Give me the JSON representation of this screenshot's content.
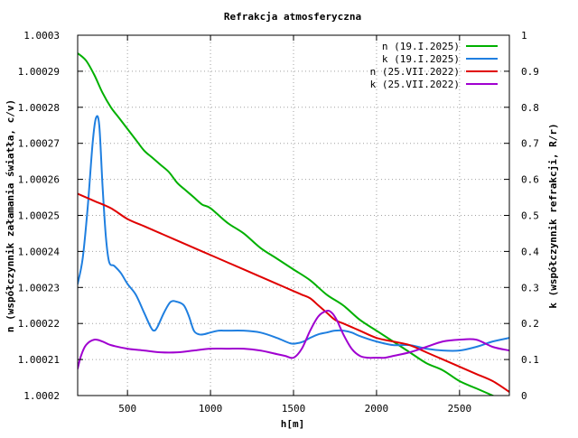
{
  "chart_data": {
    "type": "line",
    "title": "Refrakcja atmosferyczna",
    "xlabel": "h[m]",
    "ylabel_left": "n (współczynnik załamania światła, c/v)",
    "ylabel_right": "k (współczynnik refrakcji, R/r)",
    "xlim": [
      200,
      2800
    ],
    "ylim_left": [
      1.0002,
      1.0003
    ],
    "ylim_right": [
      0,
      1
    ],
    "x_ticks": [
      500,
      1000,
      1500,
      2000,
      2500
    ],
    "x_tick_labels": [
      "500",
      "1000",
      "1500",
      "2000",
      "2500"
    ],
    "y_left_ticks": [
      1.0002,
      1.00021,
      1.00022,
      1.00023,
      1.00024,
      1.00025,
      1.00026,
      1.00027,
      1.00028,
      1.00029,
      1.0003
    ],
    "y_left_tick_labels": [
      "1.0002",
      "1.00021",
      "1.00022",
      "1.00023",
      "1.00024",
      "1.00025",
      "1.00026",
      "1.00027",
      "1.00028",
      "1.00029",
      "1.0003"
    ],
    "y_right_ticks": [
      0,
      0.1,
      0.2,
      0.3,
      0.4,
      0.5,
      0.6,
      0.7,
      0.8,
      0.9,
      1
    ],
    "y_right_tick_labels": [
      "0",
      "0.1",
      "0.2",
      "0.3",
      "0.4",
      "0.5",
      "0.6",
      "0.7",
      "0.8",
      "0.9",
      "1"
    ],
    "grid": true,
    "legend_position": "top-right",
    "series": [
      {
        "name": "n (19.I.2025)",
        "axis": "left",
        "color": "#00b000",
        "x": [
          200,
          250,
          300,
          350,
          400,
          450,
          500,
          550,
          600,
          650,
          700,
          750,
          800,
          850,
          900,
          950,
          1000,
          1100,
          1200,
          1300,
          1400,
          1500,
          1600,
          1700,
          1800,
          1900,
          2000,
          2100,
          2200,
          2300,
          2400,
          2500,
          2600,
          2700,
          2800
        ],
        "y": [
          1.000295,
          1.000293,
          1.000289,
          1.000284,
          1.00028,
          1.000277,
          1.000274,
          1.000271,
          1.000268,
          1.000266,
          1.000264,
          1.000262,
          1.000259,
          1.000257,
          1.000255,
          1.000253,
          1.000252,
          1.000248,
          1.000245,
          1.000241,
          1.000238,
          1.000235,
          1.000232,
          1.000228,
          1.000225,
          1.000221,
          1.000218,
          1.000215,
          1.000212,
          1.000209,
          1.000207,
          1.000204,
          1.000202,
          1.0002,
          1.000198
        ]
      },
      {
        "name": "k (19.I.2025)",
        "axis": "right",
        "color": "#1f7fe0",
        "x": [
          200,
          230,
          260,
          290,
          310,
          330,
          350,
          370,
          390,
          420,
          460,
          500,
          550,
          600,
          640,
          660,
          680,
          720,
          760,
          800,
          840,
          870,
          900,
          930,
          960,
          1000,
          1050,
          1100,
          1200,
          1300,
          1400,
          1480,
          1520,
          1560,
          1600,
          1650,
          1700,
          1750,
          1800,
          1850,
          1900,
          2000,
          2100,
          2200,
          2300,
          2400,
          2500,
          2600,
          2700,
          2800
        ],
        "y": [
          0.31,
          0.38,
          0.52,
          0.7,
          0.77,
          0.75,
          0.58,
          0.44,
          0.37,
          0.36,
          0.34,
          0.31,
          0.28,
          0.23,
          0.19,
          0.18,
          0.19,
          0.23,
          0.26,
          0.26,
          0.25,
          0.22,
          0.18,
          0.17,
          0.17,
          0.175,
          0.18,
          0.18,
          0.18,
          0.175,
          0.16,
          0.145,
          0.145,
          0.15,
          0.16,
          0.17,
          0.175,
          0.18,
          0.18,
          0.175,
          0.165,
          0.15,
          0.14,
          0.14,
          0.13,
          0.125,
          0.125,
          0.135,
          0.15,
          0.16
        ]
      },
      {
        "name": "n (25.VII.2022)",
        "axis": "left",
        "color": "#e00000",
        "x": [
          200,
          300,
          400,
          500,
          600,
          700,
          800,
          900,
          1000,
          1100,
          1200,
          1300,
          1400,
          1500,
          1550,
          1600,
          1650,
          1700,
          1750,
          1800,
          1850,
          1900,
          2000,
          2100,
          2200,
          2300,
          2400,
          2500,
          2600,
          2700,
          2800
        ],
        "y": [
          1.000256,
          1.000254,
          1.000252,
          1.000249,
          1.000247,
          1.000245,
          1.000243,
          1.000241,
          1.000239,
          1.000237,
          1.000235,
          1.000233,
          1.000231,
          1.000229,
          1.000228,
          1.000227,
          1.000225,
          1.000223,
          1.000221,
          1.00022,
          1.000219,
          1.000218,
          1.000216,
          1.000215,
          1.000214,
          1.000212,
          1.00021,
          1.000208,
          1.000206,
          1.000204,
          1.000201
        ]
      },
      {
        "name": "k (25.VII.2022)",
        "axis": "right",
        "color": "#a000d0",
        "x": [
          200,
          220,
          250,
          300,
          350,
          400,
          500,
          600,
          700,
          800,
          900,
          1000,
          1100,
          1200,
          1300,
          1400,
          1450,
          1500,
          1550,
          1600,
          1650,
          1700,
          1730,
          1760,
          1800,
          1850,
          1900,
          1950,
          2000,
          2050,
          2100,
          2200,
          2300,
          2400,
          2500,
          2600,
          2700,
          2800
        ],
        "y": [
          0.075,
          0.11,
          0.14,
          0.155,
          0.15,
          0.14,
          0.13,
          0.125,
          0.12,
          0.12,
          0.125,
          0.13,
          0.13,
          0.13,
          0.125,
          0.115,
          0.11,
          0.105,
          0.13,
          0.18,
          0.22,
          0.235,
          0.23,
          0.21,
          0.17,
          0.13,
          0.11,
          0.105,
          0.105,
          0.105,
          0.11,
          0.12,
          0.135,
          0.15,
          0.155,
          0.155,
          0.135,
          0.125
        ]
      }
    ]
  }
}
